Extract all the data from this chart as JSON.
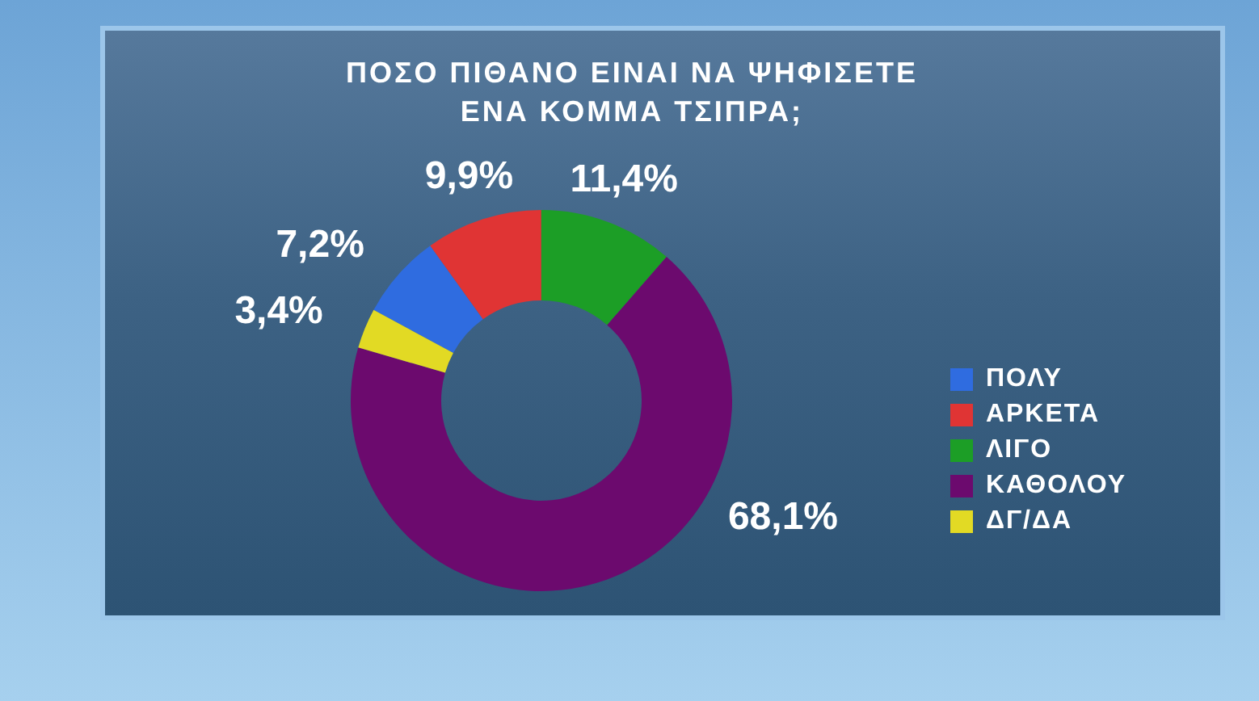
{
  "chart_data": {
    "type": "donut",
    "title": "ΠΟΣΟ ΠΙΘΑΝΟ ΕΙΝΑΙ ΝΑ ΨΗΦΙΣΕΤΕ ΕΝΑ ΚΟΜΜΑ ΤΣΙΠΡΑ;",
    "categories": [
      "ΠΟΛΥ",
      "ΑΡΚΕΤΑ",
      "ΛΙΓΟ",
      "ΚΑΘΟΛΟΥ",
      "ΔΓ/ΔΑ"
    ],
    "values": [
      7.2,
      9.9,
      11.4,
      68.1,
      3.4
    ],
    "value_labels": [
      "7,2%",
      "9,9%",
      "11,4%",
      "68,1%",
      "3,4%"
    ],
    "colors": [
      "#2f6ce0",
      "#e03434",
      "#1c9e26",
      "#6c0a6e",
      "#e2da24"
    ],
    "legend": "right"
  }
}
